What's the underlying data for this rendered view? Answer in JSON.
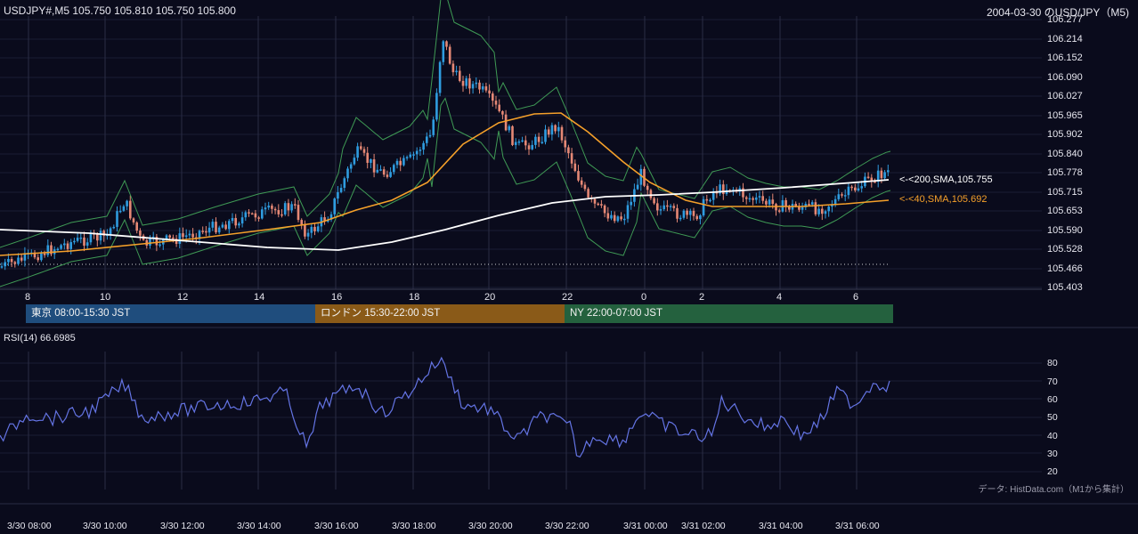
{
  "header": {
    "symbol_info": "USDJPY#,M5 105.750 105.810 105.750 105.800",
    "chart_title": "2004-03-30 のUSD/JPY（M5)"
  },
  "price_axis": [
    "106.277",
    "106.214",
    "106.152",
    "106.090",
    "106.027",
    "105.965",
    "105.902",
    "105.840",
    "105.778",
    "105.715",
    "105.653",
    "105.590",
    "105.528",
    "105.466",
    "105.403"
  ],
  "hour_axis": [
    "8",
    "10",
    "12",
    "14",
    "16",
    "18",
    "20",
    "22",
    "0",
    "2",
    "4",
    "6"
  ],
  "ma_labels": {
    "sma200": "<-<200,SMA,105.755",
    "sma40": "<-<40,SMA,105.692"
  },
  "sessions": [
    {
      "label": "東京 08:00-15:30 JST",
      "color": "#1f4d7d"
    },
    {
      "label": "ロンドン 15:30-22:00 JST",
      "color": "#8a5a18"
    },
    {
      "label": "NY 22:00-07:00 JST",
      "color": "#24613e"
    }
  ],
  "rsi": {
    "label": "RSI(14) 66.6985",
    "axis": [
      "80",
      "70",
      "60",
      "50",
      "40",
      "30",
      "20"
    ]
  },
  "datetime_axis": [
    "3/30 08:00",
    "3/30 10:00",
    "3/30 12:00",
    "3/30 14:00",
    "3/30 16:00",
    "3/30 18:00",
    "3/30 20:00",
    "3/30 22:00",
    "3/31 00:00",
    "3/31 02:00",
    "3/31 04:00",
    "3/31 06:00"
  ],
  "credit": "データ: HistData.com（M1から集計）",
  "colors": {
    "background": "#0a0b1c",
    "bull": "#2f9cdf",
    "bear": "#e58875",
    "sma40": "#f5a02a",
    "sma200": "#ffffff",
    "bollinger": "#3f9a55",
    "rsi_line": "#6474e4"
  }
}
